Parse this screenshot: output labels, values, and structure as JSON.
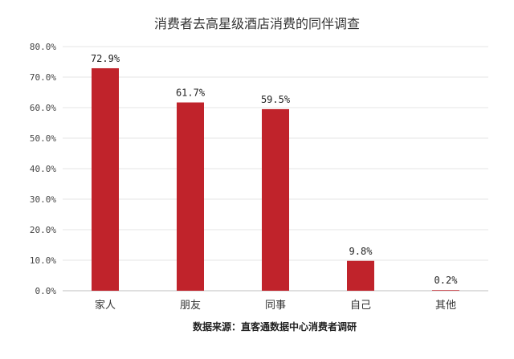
{
  "chart_data": {
    "type": "bar",
    "title": "消费者去高星级酒店消费的同伴调查",
    "categories": [
      "家人",
      "朋友",
      "同事",
      "自己",
      "其他"
    ],
    "values": [
      72.9,
      61.7,
      59.5,
      9.8,
      0.2
    ],
    "value_labels": [
      "72.9%",
      "61.7%",
      "59.5%",
      "9.8%",
      "0.2%"
    ],
    "ylim": [
      0,
      80
    ],
    "yticks": [
      0,
      10,
      20,
      30,
      40,
      50,
      60,
      70,
      80
    ],
    "ytick_labels": [
      "0.0%",
      "10.0%",
      "20.0%",
      "30.0%",
      "40.0%",
      "50.0%",
      "60.0%",
      "70.0%",
      "80.0%"
    ],
    "grid": true,
    "legend": "none",
    "bar_color": "#c0232b",
    "source": "数据来源：直客通数据中心消费者调研"
  }
}
